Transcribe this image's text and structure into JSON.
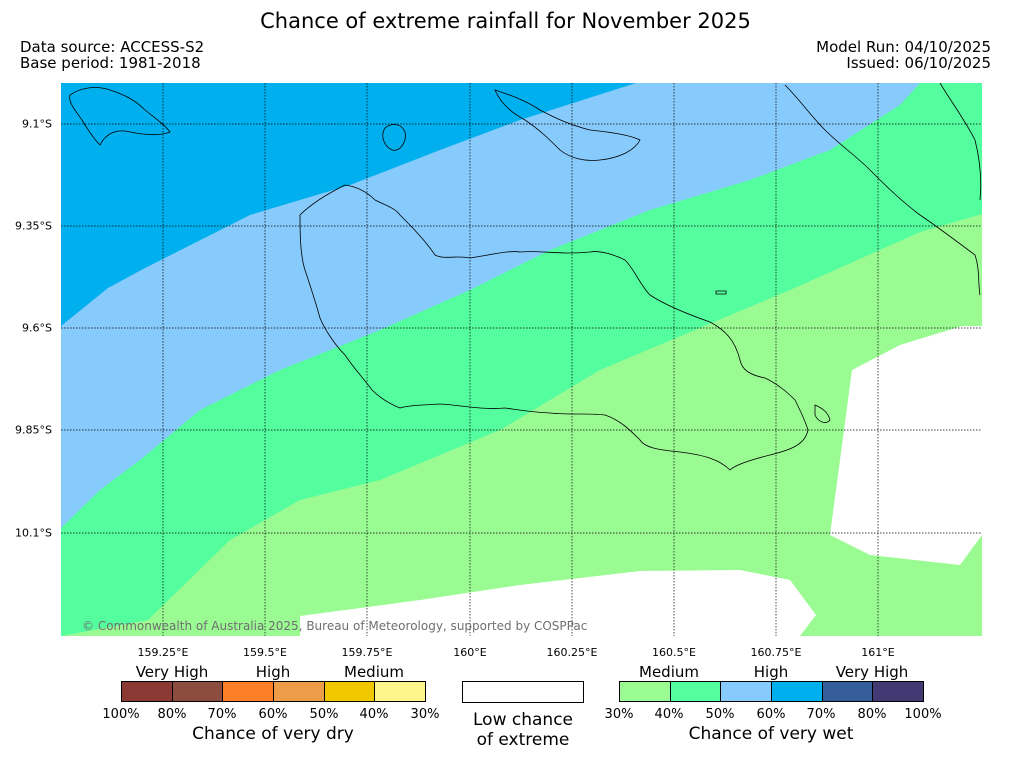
{
  "title": "Chance of extreme rainfall for November 2025",
  "meta": {
    "data_source": "Data source: ACCESS-S2",
    "base_period": "Base period: 1981-2018",
    "model_run": "Model Run: 04/10/2025",
    "issued": "Issued: 06/10/2025"
  },
  "copyright": "© Commonwealth of Australia 2025, Bureau of Meteorology, supported by COSPPac",
  "map": {
    "lon_labels": [
      "159.25°E",
      "159.5°E",
      "159.75°E",
      "160°E",
      "160.25°E",
      "160.5°E",
      "160.75°E",
      "161°E"
    ],
    "lat_labels": [
      "9.1°S",
      "9.35°S",
      "9.6°S",
      "9.85°S",
      "10.1°S"
    ],
    "colors": {
      "70-80": "#00b0ee",
      "60-70": "#87cafc",
      "40-50": "#54fd9e",
      "30-40": "#9bfb93",
      "low": "#ffffff"
    }
  },
  "legend": {
    "dry": {
      "levels": [
        "Very High",
        "High",
        "Medium"
      ],
      "ticks": [
        "100%",
        "80%",
        "70%",
        "60%",
        "50%",
        "40%",
        "30%"
      ],
      "caption": "Chance of very dry",
      "colors": [
        "#8b3a33",
        "#8c4c3e",
        "#fd7f28",
        "#ed9c48",
        "#f1c800",
        "#fef68b"
      ]
    },
    "low": {
      "caption_line1": "Low chance",
      "caption_line2": "of extreme"
    },
    "wet": {
      "levels": [
        "Medium",
        "High",
        "Very High"
      ],
      "ticks": [
        "30%",
        "40%",
        "50%",
        "60%",
        "70%",
        "80%",
        "100%"
      ],
      "caption": "Chance of very wet",
      "colors": [
        "#9bfb93",
        "#54fd9e",
        "#87cafc",
        "#00b0ee",
        "#355e9a",
        "#433a74"
      ]
    }
  }
}
